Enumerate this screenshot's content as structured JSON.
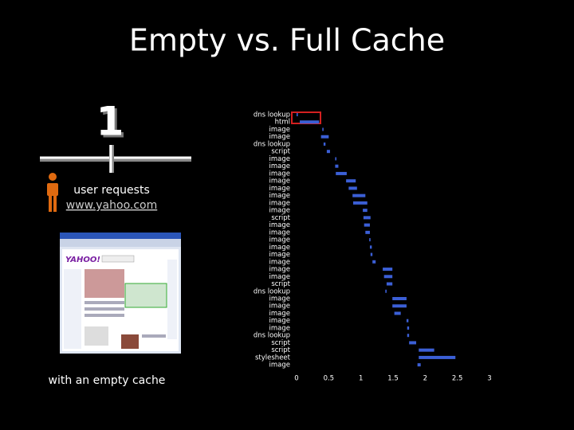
{
  "slide": {
    "title": "Empty vs. Full Cache",
    "step": "1",
    "caption": "user requests",
    "link": "www.yahoo.com",
    "footer": "with an empty cache"
  },
  "chart_data": {
    "type": "waterfall",
    "categories": [
      "dns lookup",
      "html",
      "image",
      "image",
      "dns lookup",
      "script",
      "image",
      "image",
      "image",
      "image",
      "image",
      "image",
      "image",
      "image",
      "script",
      "image",
      "image",
      "image",
      "image",
      "image",
      "image",
      "image",
      "image",
      "script",
      "dns lookup",
      "image",
      "image",
      "image",
      "image",
      "image",
      "dns lookup",
      "script",
      "script",
      "stylesheet",
      "image"
    ],
    "starts": [
      0,
      0.05,
      0.4,
      0.38,
      0.42,
      0.47,
      0.6,
      0.6,
      0.61,
      0.77,
      0.81,
      0.87,
      0.88,
      1.03,
      1.04,
      1.05,
      1.07,
      1.13,
      1.14,
      1.15,
      1.18,
      1.34,
      1.36,
      1.4,
      1.38,
      1.49,
      1.49,
      1.52,
      1.71,
      1.72,
      1.72,
      1.75,
      1.9,
      1.9,
      1.88
    ],
    "ends": [
      0.02,
      0.35,
      0.42,
      0.5,
      0.45,
      0.52,
      0.62,
      0.65,
      0.78,
      0.92,
      0.94,
      1.07,
      1.1,
      1.1,
      1.15,
      1.14,
      1.14,
      1.15,
      1.17,
      1.18,
      1.23,
      1.49,
      1.49,
      1.49,
      1.4,
      1.71,
      1.71,
      1.62,
      1.74,
      1.75,
      1.75,
      1.86,
      2.14,
      2.47,
      1.93
    ],
    "color": "#3b5fd6",
    "xlim": [
      0,
      3
    ],
    "xticks": [
      0,
      0.5,
      1,
      1.5,
      2,
      2.5,
      3
    ]
  }
}
